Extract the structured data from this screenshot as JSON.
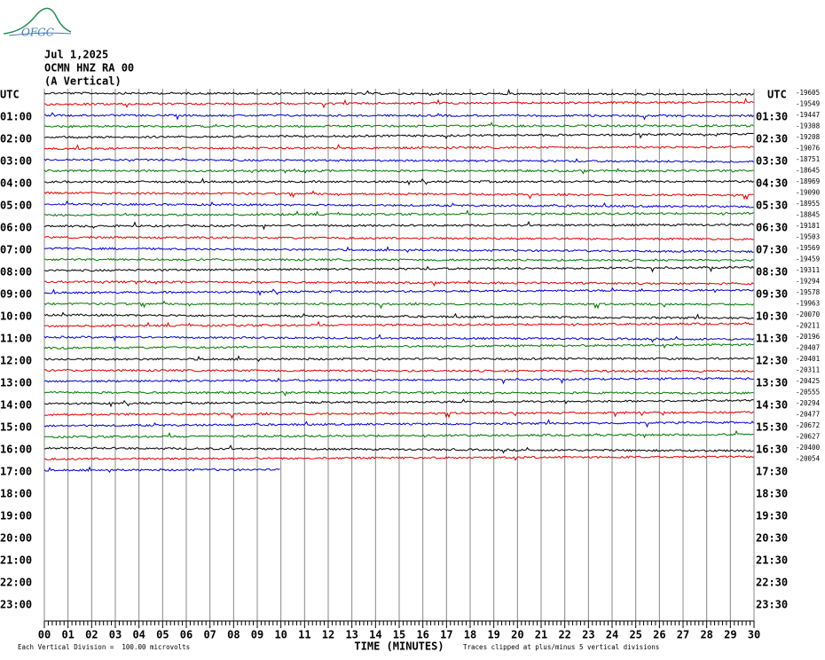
{
  "logo": "OFGC",
  "header": {
    "date": "Jul 1,2025",
    "station": "OCMN HNZ RA 00",
    "component": "(A Vertical)"
  },
  "left_axis": {
    "title": "UTC",
    "labels": [
      "01:00",
      "02:00",
      "03:00",
      "04:00",
      "05:00",
      "06:00",
      "07:00",
      "08:00",
      "09:00",
      "10:00",
      "11:00",
      "12:00",
      "13:00",
      "14:00",
      "15:00",
      "16:00",
      "17:00",
      "18:00",
      "19:00",
      "20:00",
      "21:00",
      "22:00",
      "23:00"
    ]
  },
  "right_axis": {
    "title": "UTC",
    "labels": [
      "01:30",
      "02:30",
      "03:30",
      "04:30",
      "05:30",
      "06:30",
      "07:30",
      "08:30",
      "09:30",
      "10:30",
      "11:30",
      "12:30",
      "13:30",
      "14:30",
      "15:30",
      "16:30",
      "17:30",
      "18:30",
      "19:30",
      "20:30",
      "21:30",
      "22:30",
      "23:30"
    ]
  },
  "trace_offsets": [
    -19605,
    -19549,
    -19447,
    -19308,
    -19208,
    -19076,
    -18751,
    -18645,
    -18969,
    -19090,
    -18955,
    -18845,
    -19181,
    -19503,
    -19569,
    -19459,
    -19311,
    -19294,
    -19578,
    -19963,
    -20070,
    -20211,
    -20196,
    -20407,
    -20401,
    -20311,
    -20425,
    -20555,
    -20294,
    -20477,
    -20672,
    -20627,
    -20400,
    -20054
  ],
  "x_axis": {
    "title": "TIME (MINUTES)",
    "labels": [
      "00",
      "01",
      "02",
      "03",
      "04",
      "05",
      "06",
      "07",
      "08",
      "09",
      "10",
      "11",
      "12",
      "13",
      "14",
      "15",
      "16",
      "17",
      "18",
      "19",
      "20",
      "21",
      "22",
      "23",
      "24",
      "25",
      "26",
      "27",
      "28",
      "29",
      "30"
    ]
  },
  "footer": {
    "scale": "Each Vertical Division =  100.00 microvolts",
    "clipping": "Traces clipped at plus/minus 5 vertical divisions"
  }
}
